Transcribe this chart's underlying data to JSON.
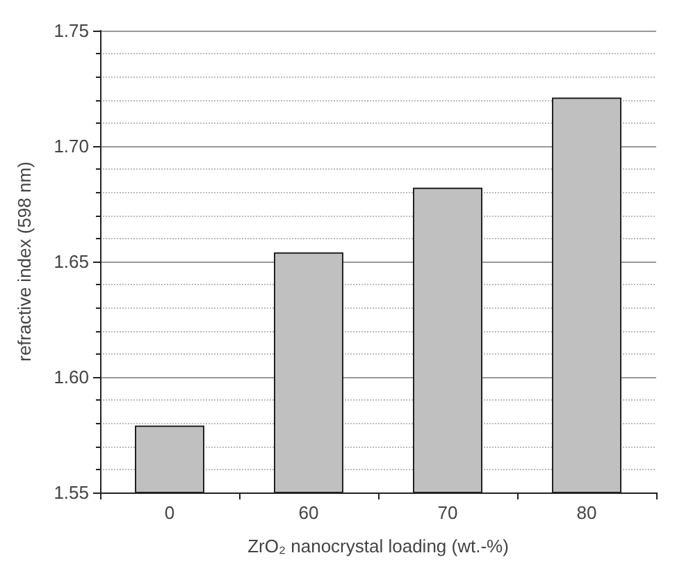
{
  "chart_data": {
    "type": "bar",
    "xlabel": "ZrO₂ nanocrystal loading (wt.-%)",
    "ylabel": "refractive index (598 nm)",
    "categories": [
      "0",
      "60",
      "70",
      "80"
    ],
    "values": [
      1.579,
      1.654,
      1.682,
      1.721
    ],
    "color": "#c0c0c0",
    "ylim": [
      1.55,
      1.75
    ],
    "yticks": [
      1.55,
      {
        "value": 1.56,
        "label": null
      },
      {
        "value": 1.57,
        "label": null
      },
      {
        "value": 1.58,
        "label": null
      },
      {
        "value": 1.59,
        "label": null
      },
      {
        "value": 1.6,
        "label": "1.60"
      },
      {
        "value": 1.61,
        "label": null
      },
      {
        "value": 1.62,
        "label": null
      },
      {
        "value": 1.63,
        "label": null
      },
      {
        "value": 1.64,
        "label": null
      },
      1.65,
      {
        "value": 1.66,
        "label": null
      },
      {
        "value": 1.67,
        "label": null
      },
      {
        "value": 1.68,
        "label": null
      },
      {
        "value": 1.69,
        "label": null
      },
      {
        "value": 1.7,
        "label": "1.70"
      },
      {
        "value": 1.71,
        "label": null
      },
      {
        "value": 1.72,
        "label": null
      },
      {
        "value": 1.73,
        "label": null
      },
      {
        "value": 1.74,
        "label": null
      },
      1.75
    ],
    "grid": "y"
  }
}
